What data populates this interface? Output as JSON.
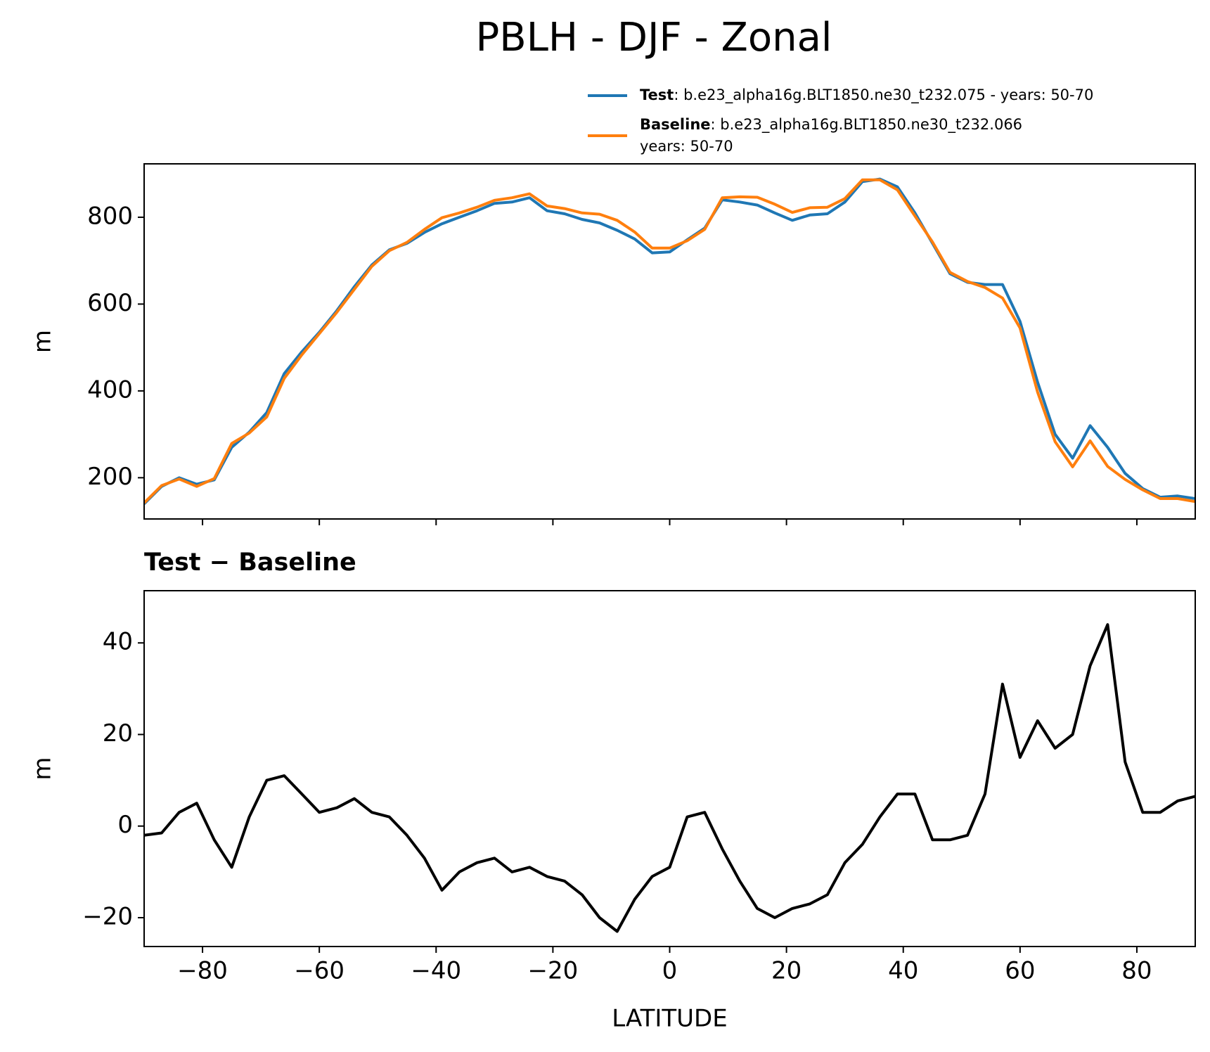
{
  "title": "PBLH - DJF - Zonal",
  "chart_data": [
    {
      "type": "line",
      "ylabel": "m",
      "x": [
        -90,
        -87,
        -84,
        -81,
        -78,
        -75,
        -72,
        -69,
        -66,
        -63,
        -60,
        -57,
        -54,
        -51,
        -48,
        -45,
        -42,
        -39,
        -36,
        -33,
        -30,
        -27,
        -24,
        -21,
        -18,
        -15,
        -12,
        -9,
        -6,
        -3,
        0,
        3,
        6,
        9,
        12,
        15,
        18,
        21,
        24,
        27,
        30,
        33,
        36,
        39,
        42,
        45,
        48,
        51,
        54,
        57,
        60,
        63,
        66,
        69,
        72,
        75,
        78,
        81,
        84,
        87,
        90
      ],
      "series": [
        {
          "name": "Test",
          "label": ": b.e23_alpha16g.BLT1850.ne30_t232.075 - years: 50-70",
          "color": "#1f77b4",
          "values": [
            140,
            180,
            200,
            185,
            195,
            270,
            305,
            350,
            440,
            490,
            535,
            585,
            640,
            690,
            725,
            740,
            765,
            785,
            800,
            815,
            832,
            835,
            845,
            815,
            808,
            795,
            787,
            770,
            750,
            718,
            720,
            748,
            775,
            840,
            835,
            828,
            810,
            793,
            805,
            808,
            835,
            882,
            888,
            870,
            810,
            740,
            670,
            650,
            645,
            645,
            560,
            420,
            300,
            245,
            320,
            270,
            210,
            175,
            155,
            158,
            152
          ]
        },
        {
          "name": "Baseline",
          "label": [
            ": b.e23_alpha16g.BLT1850.ne30_t232.066",
            "years: 50-70"
          ],
          "color": "#ff7f0e",
          "values": [
            142,
            182,
            197,
            180,
            198,
            279,
            303,
            340,
            429,
            483,
            532,
            581,
            634,
            687,
            723,
            742,
            772,
            799,
            810,
            823,
            839,
            845,
            854,
            826,
            820,
            810,
            807,
            793,
            766,
            729,
            729,
            746,
            772,
            845,
            847,
            846,
            830,
            811,
            822,
            823,
            843,
            886,
            886,
            863,
            803,
            743,
            673,
            652,
            638,
            614,
            545,
            397,
            283,
            225,
            285,
            226,
            196,
            172,
            152,
            152,
            145
          ]
        }
      ],
      "xlim": [
        -90,
        90
      ],
      "xticks": [
        -80,
        -60,
        -40,
        -20,
        0,
        20,
        40,
        60,
        80
      ],
      "ylim": [
        105,
        923
      ],
      "yticks": [
        200,
        400,
        600,
        800
      ]
    },
    {
      "type": "line",
      "title": "Test − Baseline",
      "ylabel": "m",
      "xlabel": "LATITUDE",
      "x": [
        -90,
        -87,
        -84,
        -81,
        -78,
        -75,
        -72,
        -69,
        -66,
        -63,
        -60,
        -57,
        -54,
        -51,
        -48,
        -45,
        -42,
        -39,
        -36,
        -33,
        -30,
        -27,
        -24,
        -21,
        -18,
        -15,
        -12,
        -9,
        -6,
        -3,
        0,
        3,
        6,
        9,
        12,
        15,
        18,
        21,
        24,
        27,
        30,
        33,
        36,
        39,
        42,
        45,
        48,
        51,
        54,
        57,
        60,
        63,
        66,
        69,
        72,
        75,
        78,
        81,
        84,
        87,
        90
      ],
      "series": [
        {
          "color": "#000000",
          "values": [
            -2,
            -1.5,
            3,
            5,
            -3,
            -9,
            2,
            10,
            11,
            7,
            3,
            4,
            6,
            3,
            2,
            -2,
            -7,
            -14,
            -10,
            -8,
            -7,
            -10,
            -9,
            -11,
            -12,
            -15,
            -20,
            -23,
            -16,
            -11,
            -9,
            2,
            3,
            -5,
            -12,
            -18,
            -20,
            -18,
            -17,
            -15,
            -8,
            -4,
            2,
            7,
            7,
            -3,
            -3,
            -2,
            7,
            31,
            15,
            23,
            17,
            20,
            35,
            44,
            14,
            3,
            3,
            5.5,
            6.5
          ]
        }
      ],
      "xlim": [
        -90,
        90
      ],
      "xticks": [
        {
          "value": -80,
          "label": "−80"
        },
        {
          "value": -60,
          "label": "−60"
        },
        {
          "value": -40,
          "label": "−40"
        },
        {
          "value": -20,
          "label": "−20"
        },
        0,
        20,
        40,
        60,
        80
      ],
      "ylim": [
        -26.3,
        51.4
      ],
      "yticks": [
        {
          "value": -20,
          "label": "−20"
        },
        0,
        20,
        40
      ]
    }
  ]
}
